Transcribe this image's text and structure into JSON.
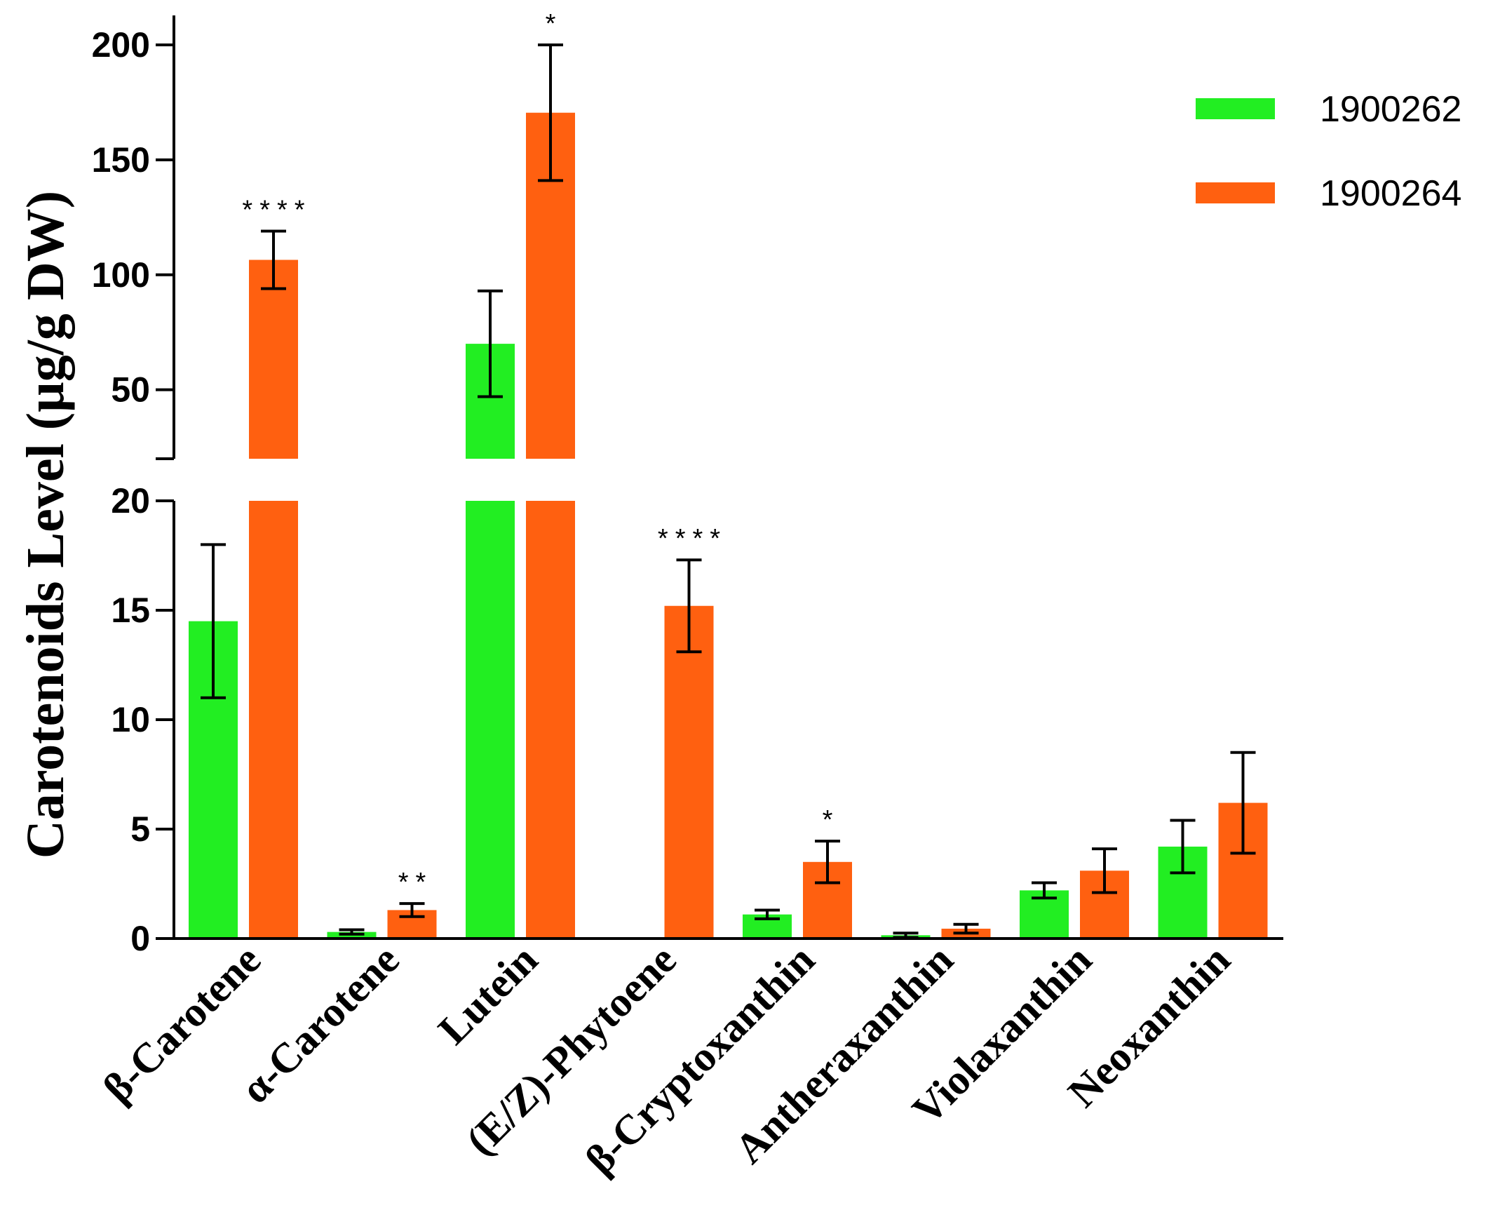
{
  "chart_data": {
    "type": "bar",
    "title": "",
    "xlabel": "",
    "ylabel": "Carotenoids Level (µg/g DW)",
    "axis_break": {
      "lower": [
        0,
        20
      ],
      "upper": [
        20,
        200
      ]
    },
    "lower_ticks": [
      "0",
      "5",
      "10",
      "15",
      "20"
    ],
    "upper_ticks": [
      "50",
      "100",
      "150",
      "200"
    ],
    "categories": [
      "β-Carotene",
      "α-Carotene",
      "Lutein",
      "(E/Z)-Phytoene",
      "β-Cryptoxanthin",
      "Antheraxanthin",
      "Violaxanthin",
      "Neoxanthin"
    ],
    "series": [
      {
        "name": "1900262",
        "color": "#22ee22",
        "values": [
          14.5,
          0.3,
          70,
          0,
          1.1,
          0.15,
          2.2,
          4.2
        ],
        "errors": [
          3.5,
          0.1,
          23,
          0,
          0.2,
          0.1,
          0.35,
          1.2
        ]
      },
      {
        "name": "1900264",
        "color": "#ff6010",
        "values": [
          106.5,
          1.3,
          170.5,
          15.2,
          3.5,
          0.45,
          3.1,
          6.2
        ],
        "errors": [
          12.5,
          0.3,
          29.5,
          2.1,
          0.95,
          0.2,
          1.0,
          2.3
        ]
      }
    ],
    "significance": [
      {
        "category": 0,
        "series": 1,
        "text": "****"
      },
      {
        "category": 1,
        "series": 1,
        "text": "**"
      },
      {
        "category": 2,
        "series": 1,
        "text": "*"
      },
      {
        "category": 3,
        "series": 1,
        "text": "****"
      },
      {
        "category": 4,
        "series": 1,
        "text": "*"
      }
    ],
    "legend": {
      "position": "top-right",
      "items": [
        {
          "label": "1900262",
          "color": "#22ee22"
        },
        {
          "label": "1900264",
          "color": "#ff6010"
        }
      ]
    }
  }
}
